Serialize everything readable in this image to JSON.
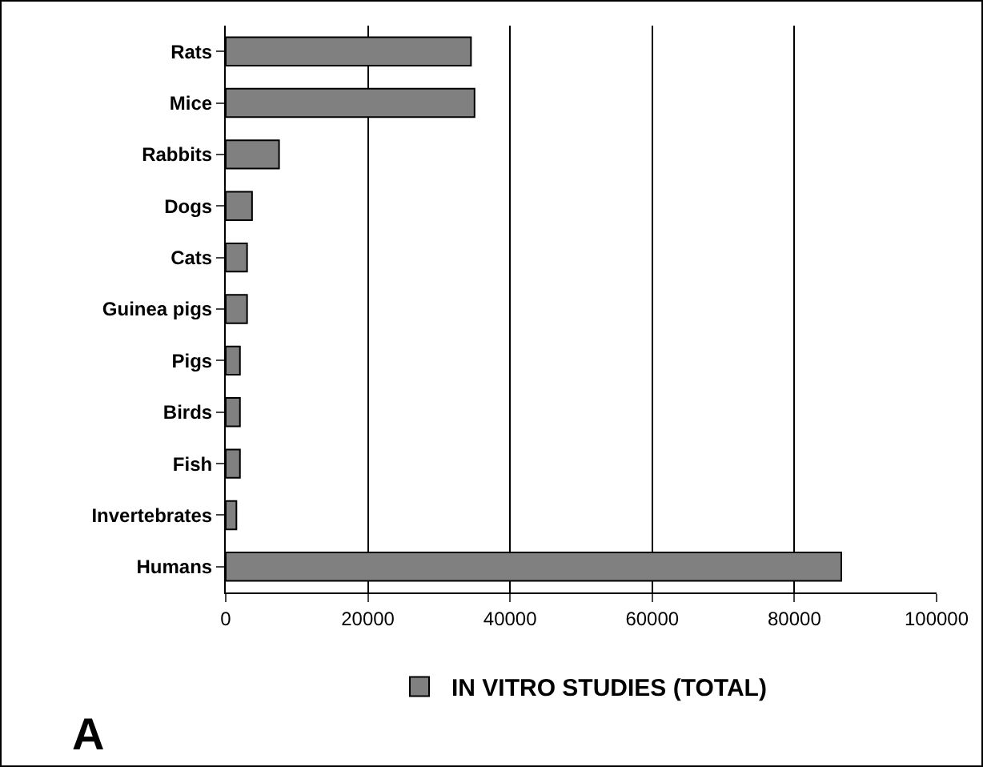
{
  "chart_data": {
    "type": "bar",
    "orientation": "horizontal",
    "categories": [
      "Rats",
      "Mice",
      "Rabbits",
      "Dogs",
      "Cats",
      "Guinea pigs",
      "Pigs",
      "Birds",
      "Fish",
      "Invertebrates",
      "Humans"
    ],
    "series": [
      {
        "name": "IN VITRO STUDIES (TOTAL)",
        "color": "#808080",
        "values": [
          34500,
          35000,
          7500,
          3700,
          3000,
          3000,
          2000,
          2000,
          2000,
          1500,
          86600
        ]
      }
    ],
    "xlim": [
      0,
      100000
    ],
    "xticks": [
      0,
      20000,
      40000,
      60000,
      80000,
      100000
    ],
    "grid": "x",
    "legend": "bottom",
    "annotations": [
      "A"
    ]
  }
}
